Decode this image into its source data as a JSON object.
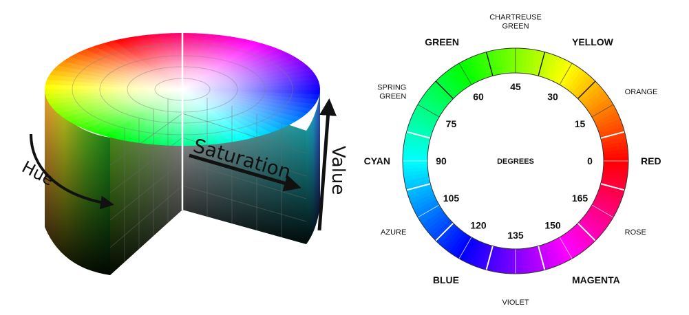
{
  "cylinder": {
    "hue_label": "Hue",
    "saturation_label": "Saturation",
    "value_label": "Value"
  },
  "wheel": {
    "center_label": "DEGREES",
    "colors": [
      {
        "name": "RED",
        "hex": "#ff0000"
      },
      {
        "name": "ORANGE",
        "hex": "#ff8000"
      },
      {
        "name": "YELLOW",
        "hex": "#ffff00"
      },
      {
        "name": "CHARTREUSE GREEN",
        "hex": "#80ff00"
      },
      {
        "name": "GREEN",
        "hex": "#00ff00"
      },
      {
        "name": "SPRING GREEN",
        "hex": "#00ff80"
      },
      {
        "name": "CYAN",
        "hex": "#00ffff"
      },
      {
        "name": "AZURE",
        "hex": "#0080ff"
      },
      {
        "name": "BLUE",
        "hex": "#0000ff"
      },
      {
        "name": "VIOLET",
        "hex": "#8000ff"
      },
      {
        "name": "MAGENTA",
        "hex": "#ff00ff"
      },
      {
        "name": "ROSE",
        "hex": "#ff0080"
      }
    ],
    "degree_labels": [
      "0",
      "15",
      "30",
      "45",
      "60",
      "75",
      "90",
      "105",
      "120",
      "135",
      "150",
      "165"
    ],
    "divider_color": "#ffffff",
    "divider_upper_color": "#111111"
  }
}
